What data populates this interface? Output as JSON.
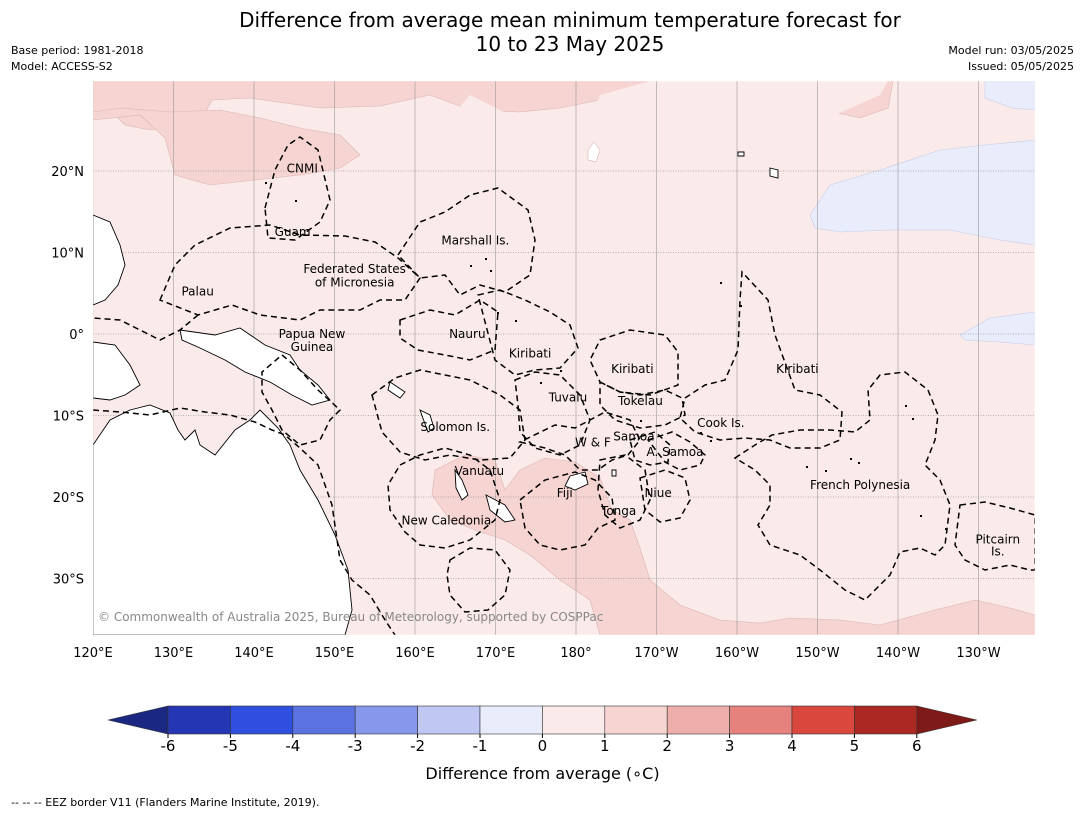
{
  "title_line1": "Difference from average mean minimum temperature forecast for",
  "title_line2": "10 to 23 May 2025",
  "meta_left": [
    "Base period: 1981-2018",
    "Model: ACCESS-S2"
  ],
  "meta_right": [
    "Model run: 03/05/2025",
    "Issued: 05/05/2025"
  ],
  "copyright": "© Commonwealth of Australia 2025, Bureau of Meteorology, supported by COSPPac",
  "lon_ticks": [
    "120°E",
    "130°E",
    "140°E",
    "150°E",
    "160°E",
    "170°E",
    "180°",
    "170°W",
    "160°W",
    "150°W",
    "140°W",
    "130°W"
  ],
  "lat_ticks": [
    "20°N",
    "10°N",
    "0°",
    "10°S",
    "20°S",
    "30°S"
  ],
  "region_labels": [
    {
      "text": "CNMI",
      "lon": 146,
      "lat": 20.3
    },
    {
      "text": "Guam",
      "lon": 144.8,
      "lat": 12.5
    },
    {
      "text": "Marshall Is.",
      "lon": 167.5,
      "lat": 11.5
    },
    {
      "text": "Federated States",
      "lon": 152.5,
      "lat": 8
    },
    {
      "text": "of Micronesia",
      "lon": 152.5,
      "lat": 6.3
    },
    {
      "text": "Palau",
      "lon": 133,
      "lat": 5.2
    },
    {
      "text": "Papua New",
      "lon": 147.2,
      "lat": 0
    },
    {
      "text": "Guinea",
      "lon": 147.2,
      "lat": -1.6
    },
    {
      "text": "Nauru",
      "lon": 166.5,
      "lat": 0
    },
    {
      "text": "Kiribati",
      "lon": 174.3,
      "lat": -2.4
    },
    {
      "text": "Kiribati",
      "lon": -173,
      "lat": -4.3
    },
    {
      "text": "Kiribati",
      "lon": -152.5,
      "lat": -4.3
    },
    {
      "text": "Tuvalu",
      "lon": 179,
      "lat": -7.8
    },
    {
      "text": "Tokelau",
      "lon": -172,
      "lat": -8.2
    },
    {
      "text": "Cook Is.",
      "lon": -162,
      "lat": -10.9
    },
    {
      "text": "Solomon Is.",
      "lon": 165,
      "lat": -11.4
    },
    {
      "text": "W & F",
      "lon": -177.9,
      "lat": -13.3
    },
    {
      "text": "Samoa",
      "lon": -172.8,
      "lat": -12.6
    },
    {
      "text": "A. Samoa",
      "lon": -167.7,
      "lat": -14.5
    },
    {
      "text": "Vanuatu",
      "lon": 168,
      "lat": -16.8
    },
    {
      "text": "Fiji",
      "lon": 178.6,
      "lat": -19.5
    },
    {
      "text": "Niue",
      "lon": -169.8,
      "lat": -19.5
    },
    {
      "text": "Tonga",
      "lon": -174.7,
      "lat": -21.7
    },
    {
      "text": "French Polynesia",
      "lon": -144.7,
      "lat": -18.5
    },
    {
      "text": "New Caledonia",
      "lon": 163.9,
      "lat": -22.9
    },
    {
      "text": "Pitcairn",
      "lon": -127.6,
      "lat": -25.2
    },
    {
      "text": "Is.",
      "lon": -127.6,
      "lat": -26.7
    }
  ],
  "colorbar": {
    "labels": [
      "-6",
      "-5",
      "-4",
      "-3",
      "-2",
      "-1",
      "0",
      "1",
      "2",
      "3",
      "4",
      "5",
      "6"
    ],
    "bin_colors": [
      "#2536b5",
      "#2f4fdf",
      "#5b73e2",
      "#8797eb",
      "#c0c7f3",
      "#e8ecfb",
      "#fbeaea",
      "#f6d4d2",
      "#eeafab",
      "#e5827e",
      "#d9473d",
      "#ab2922"
    ],
    "under_color": "#1a2882",
    "over_color": "#7e1b18",
    "title": "Difference from average ($^\\circ$C)"
  },
  "colorbar_title": "Difference from average (",
  "colorbar_title_unit": "∘C)",
  "footnote": "--  --  -- EEZ border V11 (Flanders Marine Institute, 2019)."
}
